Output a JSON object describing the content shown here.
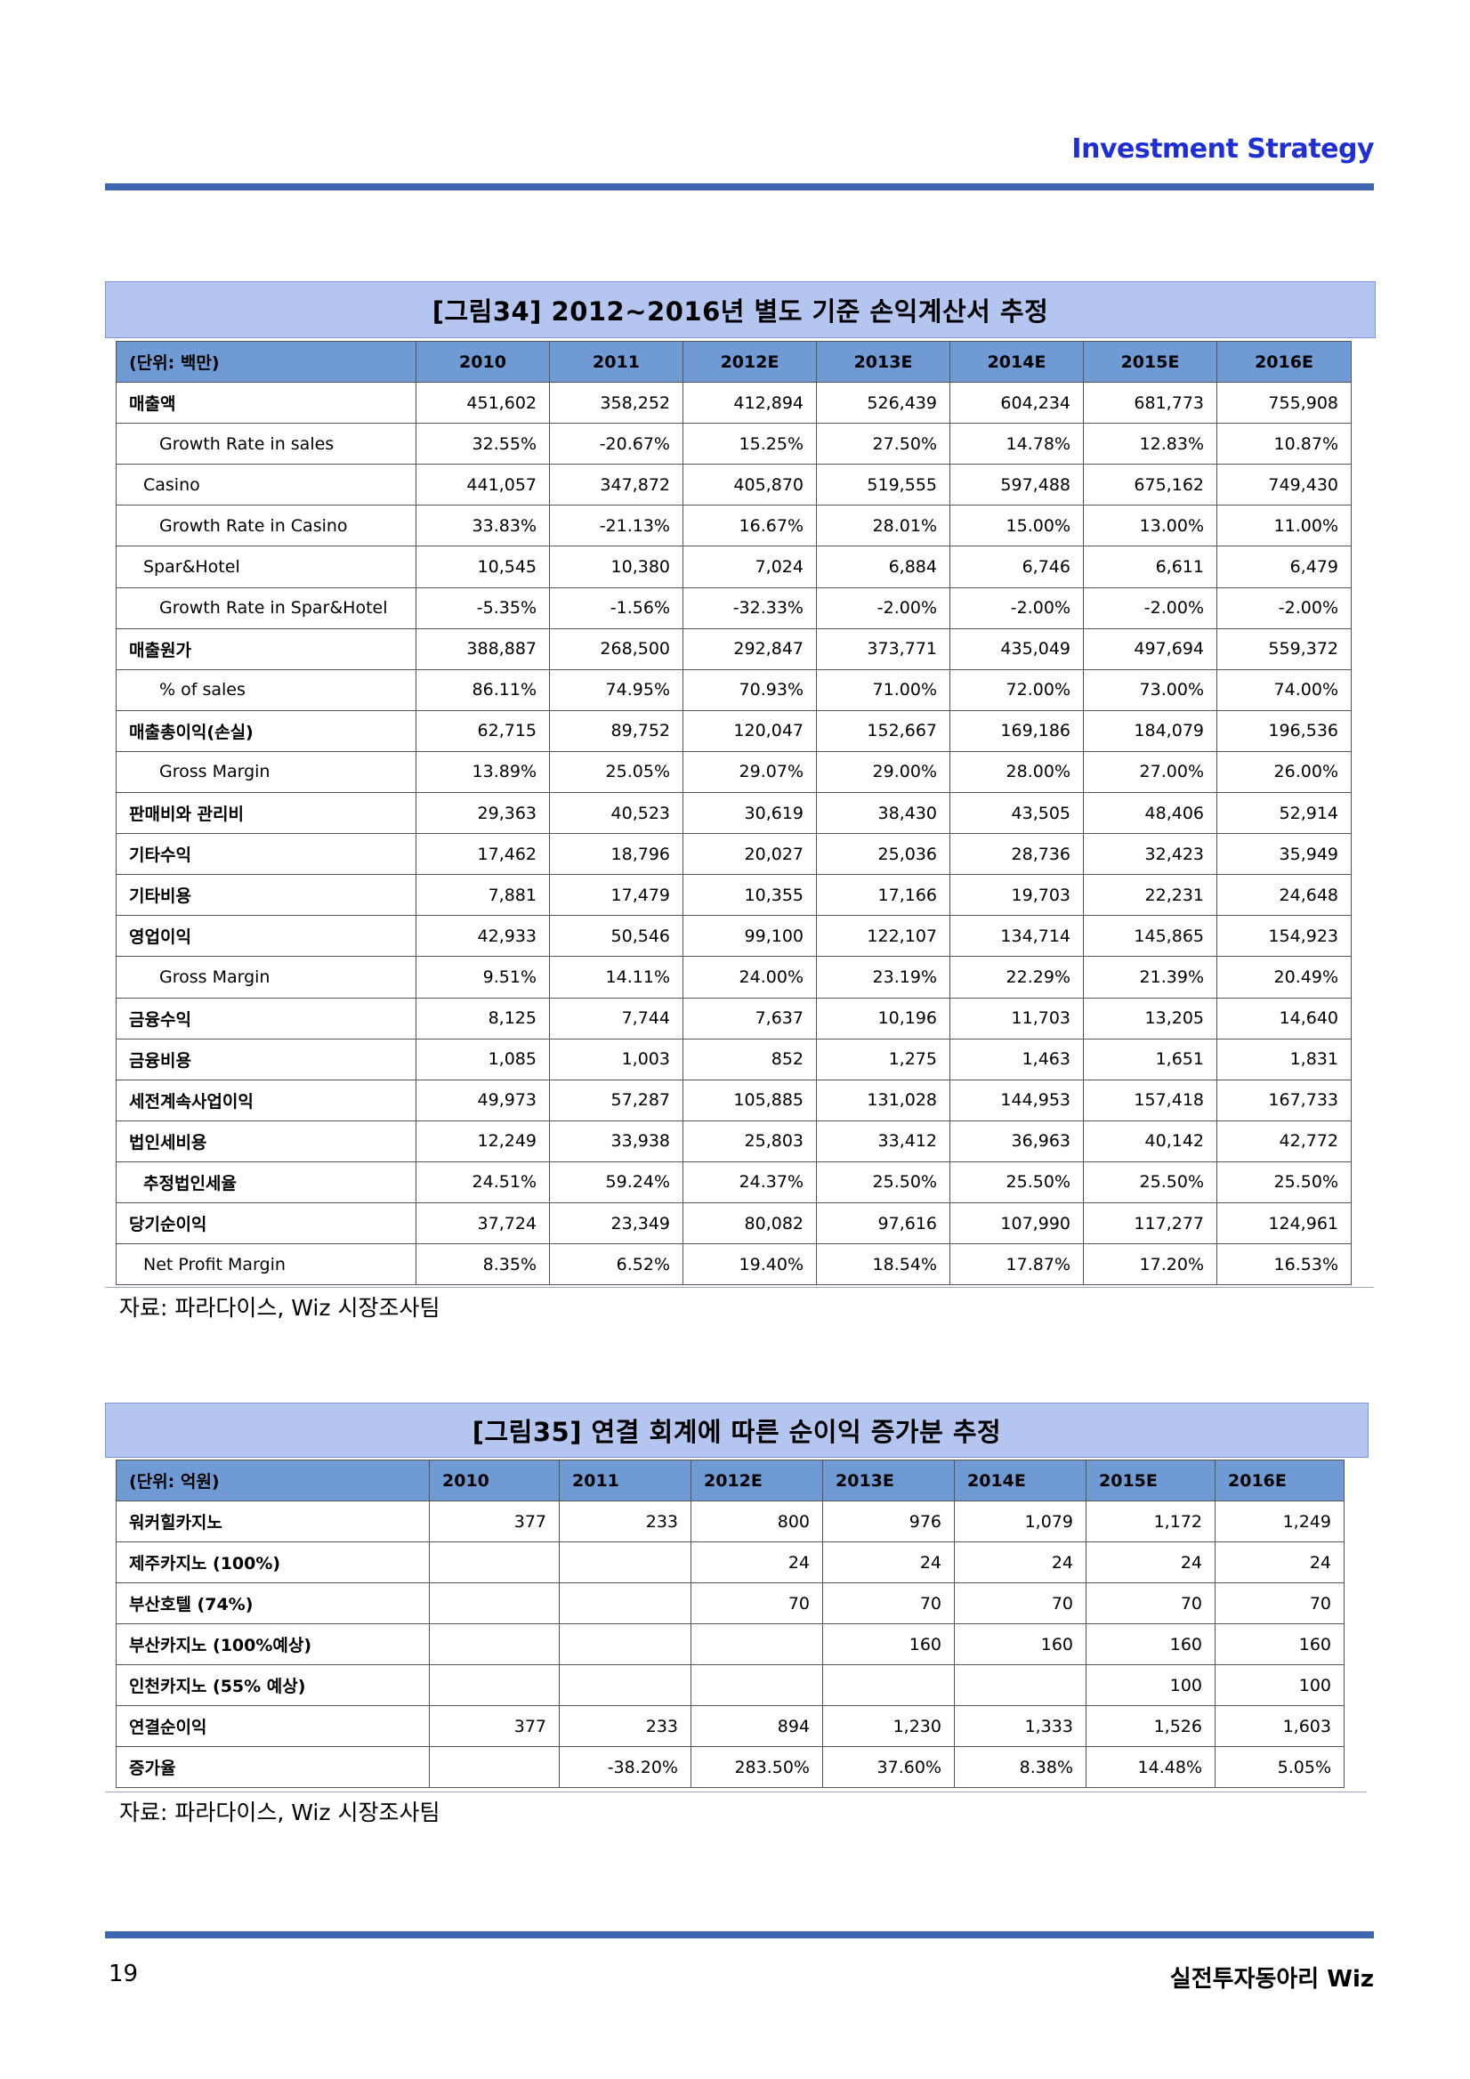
{
  "header": {
    "title": "Investment  Strategy"
  },
  "footer": {
    "page_number": "19",
    "brand": "실전투자동아리  Wiz"
  },
  "figure34": {
    "title": "[그림34]  2012~2016년  별도  기준  손익계산서  추정",
    "unit": "(단위:  백만)",
    "years": [
      "2010",
      "2011",
      "2012E",
      "2013E",
      "2014E",
      "2015E",
      "2016E"
    ],
    "rows": [
      {
        "label": "매출액",
        "values": [
          "451,602",
          "358,252",
          "412,894",
          "526,439",
          "604,234",
          "681,773",
          "755,908"
        ]
      },
      {
        "label": "Growth  Rate  in  sales",
        "values": [
          "32.55%",
          "-20.67%",
          "15.25%",
          "27.50%",
          "14.78%",
          "12.83%",
          "10.87%"
        ]
      },
      {
        "label": "Casino",
        "values": [
          "441,057",
          "347,872",
          "405,870",
          "519,555",
          "597,488",
          "675,162",
          "749,430"
        ]
      },
      {
        "label": "Growth  Rate  in  Casino",
        "values": [
          "33.83%",
          "-21.13%",
          "16.67%",
          "28.01%",
          "15.00%",
          "13.00%",
          "11.00%"
        ]
      },
      {
        "label": "Spar&Hotel",
        "values": [
          "10,545",
          "10,380",
          "7,024",
          "6,884",
          "6,746",
          "6,611",
          "6,479"
        ]
      },
      {
        "label": "Growth  Rate  in  Spar&Hotel",
        "values": [
          "-5.35%",
          "-1.56%",
          "-32.33%",
          "-2.00%",
          "-2.00%",
          "-2.00%",
          "-2.00%"
        ]
      },
      {
        "label": "매출원가",
        "values": [
          "388,887",
          "268,500",
          "292,847",
          "373,771",
          "435,049",
          "497,694",
          "559,372"
        ]
      },
      {
        "label": "%  of  sales",
        "values": [
          "86.11%",
          "74.95%",
          "70.93%",
          "71.00%",
          "72.00%",
          "73.00%",
          "74.00%"
        ]
      },
      {
        "label": "매출총이익(손실)",
        "values": [
          "62,715",
          "89,752",
          "120,047",
          "152,667",
          "169,186",
          "184,079",
          "196,536"
        ]
      },
      {
        "label": "Gross  Margin",
        "values": [
          "13.89%",
          "25.05%",
          "29.07%",
          "29.00%",
          "28.00%",
          "27.00%",
          "26.00%"
        ]
      },
      {
        "label": "판매비와  관리비",
        "values": [
          "29,363",
          "40,523",
          "30,619",
          "38,430",
          "43,505",
          "48,406",
          "52,914"
        ]
      },
      {
        "label": "기타수익",
        "values": [
          "17,462",
          "18,796",
          "20,027",
          "25,036",
          "28,736",
          "32,423",
          "35,949"
        ]
      },
      {
        "label": "기타비용",
        "values": [
          "7,881",
          "17,479",
          "10,355",
          "17,166",
          "19,703",
          "22,231",
          "24,648"
        ]
      },
      {
        "label": "영업이익",
        "values": [
          "42,933",
          "50,546",
          "99,100",
          "122,107",
          "134,714",
          "145,865",
          "154,923"
        ]
      },
      {
        "label": "Gross  Margin",
        "values": [
          "9.51%",
          "14.11%",
          "24.00%",
          "23.19%",
          "22.29%",
          "21.39%",
          "20.49%"
        ]
      },
      {
        "label": "금융수익",
        "values": [
          "8,125",
          "7,744",
          "7,637",
          "10,196",
          "11,703",
          "13,205",
          "14,640"
        ]
      },
      {
        "label": "금융비용",
        "values": [
          "1,085",
          "1,003",
          "852",
          "1,275",
          "1,463",
          "1,651",
          "1,831"
        ]
      },
      {
        "label": "세전계속사업이익",
        "values": [
          "49,973",
          "57,287",
          "105,885",
          "131,028",
          "144,953",
          "157,418",
          "167,733"
        ]
      },
      {
        "label": "법인세비용",
        "values": [
          "12,249",
          "33,938",
          "25,803",
          "33,412",
          "36,963",
          "40,142",
          "42,772"
        ]
      },
      {
        "label": "추정법인세율",
        "values": [
          "24.51%",
          "59.24%",
          "24.37%",
          "25.50%",
          "25.50%",
          "25.50%",
          "25.50%"
        ]
      },
      {
        "label": "당기순이익",
        "values": [
          "37,724",
          "23,349",
          "80,082",
          "97,616",
          "107,990",
          "117,277",
          "124,961"
        ]
      },
      {
        "label": "Net  Profit  Margin",
        "values": [
          "8.35%",
          "6.52%",
          "19.40%",
          "18.54%",
          "17.87%",
          "17.20%",
          "16.53%"
        ]
      }
    ],
    "source": "자료:  파라다이스,  Wiz  시장조사팀"
  },
  "figure35": {
    "title": "[그림35]  연결  회계에  따른  순이익  증가분  추정",
    "unit": "(단위:   억원)",
    "years": [
      "2010",
      "2011",
      "2012E",
      "2013E",
      "2014E",
      "2015E",
      "2016E"
    ],
    "rows": [
      {
        "label": "워커힐카지노",
        "values": [
          "377",
          "233",
          "800",
          "976",
          "1,079",
          "1,172",
          "1,249"
        ]
      },
      {
        "label": "제주카지노  (100%)",
        "values": [
          "",
          "",
          "24",
          "24",
          "24",
          "24",
          "24"
        ]
      },
      {
        "label": "부산호텔  (74%)",
        "values": [
          "",
          "",
          "70",
          "70",
          "70",
          "70",
          "70"
        ]
      },
      {
        "label": "부산카지노  (100%예상)",
        "values": [
          "",
          "",
          "",
          "160",
          "160",
          "160",
          "160"
        ]
      },
      {
        "label": "인천카지노  (55%  예상)",
        "values": [
          "",
          "",
          "",
          "",
          "",
          "100",
          "100"
        ]
      },
      {
        "label": "연결순이익",
        "values": [
          "377",
          "233",
          "894",
          "1,230",
          "1,333",
          "1,526",
          "1,603"
        ]
      },
      {
        "label": "증가율",
        "values": [
          "",
          "-38.20%",
          "283.50%",
          "37.60%",
          "8.38%",
          "14.48%",
          "5.05%"
        ]
      }
    ],
    "source": "자료:  파라다이스,  Wiz  시장조사팀"
  }
}
